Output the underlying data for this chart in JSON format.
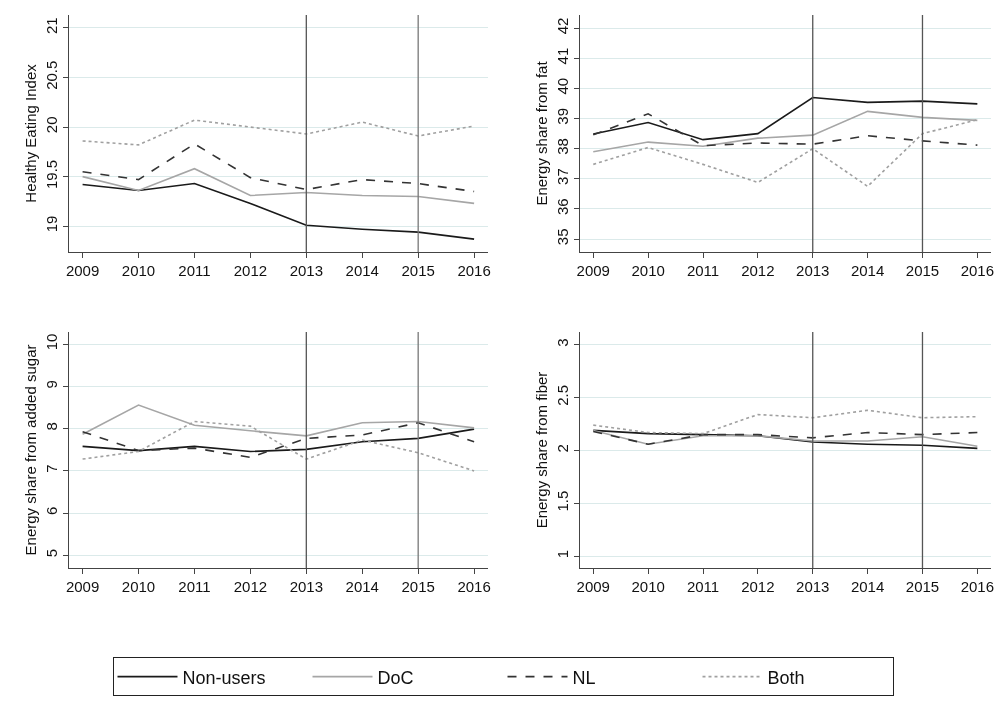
{
  "chart_data": [
    {
      "type": "line",
      "ylabel": "Healthy Eating Index",
      "x": [
        2009,
        2010,
        2011,
        2012,
        2013,
        2014,
        2015,
        2016
      ],
      "xlim": [
        2008.75,
        2016.25
      ],
      "xticks": [
        2009,
        2010,
        2011,
        2012,
        2013,
        2014,
        2015,
        2016
      ],
      "ylim": [
        18.74,
        21.13
      ],
      "yticks": [
        19,
        19.5,
        20,
        20.5,
        21
      ],
      "grid": "y",
      "legend": "bottom",
      "marker": "none",
      "ref_lines": [
        {
          "axis": "x",
          "value": 2013,
          "color": "#555555"
        },
        {
          "axis": "x",
          "value": 2015,
          "color": "#777777"
        }
      ],
      "series": [
        {
          "name": "Non-users",
          "color": "#1a1a1a",
          "line_style": "solid",
          "values": [
            19.42,
            19.36,
            19.43,
            19.23,
            19.01,
            18.97,
            18.94,
            18.87
          ]
        },
        {
          "name": "DoC",
          "color": "#a6a6a6",
          "line_style": "solid",
          "values": [
            19.5,
            19.36,
            19.58,
            19.31,
            19.34,
            19.31,
            19.3,
            19.23
          ]
        },
        {
          "name": "NL",
          "color": "#333333",
          "line_style": "dashed",
          "values": [
            19.55,
            19.47,
            19.83,
            19.49,
            19.37,
            19.47,
            19.43,
            19.35
          ]
        },
        {
          "name": "Both",
          "color": "#a0a0a0",
          "line_style": "dotted",
          "values": [
            19.86,
            19.82,
            20.07,
            20.0,
            19.93,
            20.05,
            19.91,
            20.01
          ]
        }
      ]
    },
    {
      "type": "line",
      "ylabel": "Energy share from fat",
      "x": [
        2009,
        2010,
        2011,
        2012,
        2013,
        2014,
        2015,
        2016
      ],
      "xlim": [
        2008.75,
        2016.25
      ],
      "xticks": [
        2009,
        2010,
        2011,
        2012,
        2013,
        2014,
        2015,
        2016
      ],
      "ylim": [
        34.57,
        42.44
      ],
      "yticks": [
        35,
        36,
        37,
        38,
        39,
        40,
        41,
        42
      ],
      "grid": "y",
      "legend": "bottom",
      "marker": "none",
      "ref_lines": [
        {
          "axis": "x",
          "value": 2013,
          "color": "#555555"
        },
        {
          "axis": "x",
          "value": 2015,
          "color": "#555555"
        }
      ],
      "series": [
        {
          "name": "Non-users",
          "color": "#1a1a1a",
          "line_style": "solid",
          "values": [
            38.49,
            38.87,
            38.3,
            38.5,
            39.7,
            39.54,
            39.58,
            39.49
          ]
        },
        {
          "name": "DoC",
          "color": "#a6a6a6",
          "line_style": "solid",
          "values": [
            37.9,
            38.22,
            38.08,
            38.35,
            38.45,
            39.24,
            39.04,
            38.94
          ]
        },
        {
          "name": "NL",
          "color": "#333333",
          "line_style": "dashed",
          "values": [
            38.46,
            39.16,
            38.1,
            38.19,
            38.15,
            38.43,
            38.26,
            38.12
          ]
        },
        {
          "name": "Both",
          "color": "#a0a0a0",
          "line_style": "dotted",
          "values": [
            37.48,
            38.04,
            37.48,
            36.88,
            38.0,
            36.75,
            38.5,
            38.96
          ]
        }
      ]
    },
    {
      "type": "line",
      "ylabel": "Energy share from added sugar",
      "x": [
        2009,
        2010,
        2011,
        2012,
        2013,
        2014,
        2015,
        2016
      ],
      "xlim": [
        2008.75,
        2016.25
      ],
      "xticks": [
        2009,
        2010,
        2011,
        2012,
        2013,
        2014,
        2015,
        2016
      ],
      "ylim": [
        4.7,
        10.29
      ],
      "yticks": [
        5,
        6,
        7,
        8,
        9,
        10
      ],
      "grid": "y",
      "legend": "bottom",
      "marker": "none",
      "ref_lines": [
        {
          "axis": "x",
          "value": 2013,
          "color": "#555555"
        },
        {
          "axis": "x",
          "value": 2015,
          "color": "#777777"
        }
      ],
      "series": [
        {
          "name": "Non-users",
          "color": "#1a1a1a",
          "line_style": "solid",
          "values": [
            7.58,
            7.48,
            7.58,
            7.46,
            7.51,
            7.69,
            7.77,
            7.99
          ]
        },
        {
          "name": "DoC",
          "color": "#a6a6a6",
          "line_style": "solid",
          "values": [
            7.87,
            8.56,
            8.08,
            7.95,
            7.83,
            8.14,
            8.17,
            8.02
          ]
        },
        {
          "name": "NL",
          "color": "#333333",
          "line_style": "dashed",
          "values": [
            7.93,
            7.48,
            7.54,
            7.32,
            7.77,
            7.85,
            8.14,
            7.69
          ]
        },
        {
          "name": "Both",
          "color": "#a0a0a0",
          "line_style": "dotted",
          "values": [
            7.28,
            7.46,
            8.17,
            8.06,
            7.28,
            7.73,
            7.43,
            7.0
          ]
        }
      ]
    },
    {
      "type": "line",
      "ylabel": "Energy share from fiber",
      "x": [
        2009,
        2010,
        2011,
        2012,
        2013,
        2014,
        2015,
        2016
      ],
      "xlim": [
        2008.75,
        2016.25
      ],
      "xticks": [
        2009,
        2010,
        2011,
        2012,
        2013,
        2014,
        2015,
        2016
      ],
      "ylim": [
        0.89,
        3.12
      ],
      "yticks": [
        1,
        1.5,
        2,
        2.5,
        3
      ],
      "grid": "y",
      "legend": "bottom",
      "marker": "none",
      "ref_lines": [
        {
          "axis": "x",
          "value": 2013,
          "color": "#555555"
        },
        {
          "axis": "x",
          "value": 2015,
          "color": "#555555"
        }
      ],
      "series": [
        {
          "name": "Non-users",
          "color": "#1a1a1a",
          "line_style": "solid",
          "values": [
            2.19,
            2.16,
            2.15,
            2.14,
            2.08,
            2.06,
            2.05,
            2.02
          ]
        },
        {
          "name": "DoC",
          "color": "#a6a6a6",
          "line_style": "solid",
          "values": [
            2.19,
            2.06,
            2.14,
            2.14,
            2.09,
            2.09,
            2.13,
            2.04
          ]
        },
        {
          "name": "NL",
          "color": "#333333",
          "line_style": "dashed",
          "values": [
            2.18,
            2.06,
            2.15,
            2.15,
            2.12,
            2.17,
            2.15,
            2.17
          ]
        },
        {
          "name": "Both",
          "color": "#a0a0a0",
          "line_style": "dotted",
          "values": [
            2.24,
            2.17,
            2.16,
            2.34,
            2.31,
            2.38,
            2.31,
            2.32
          ]
        }
      ]
    }
  ]
}
